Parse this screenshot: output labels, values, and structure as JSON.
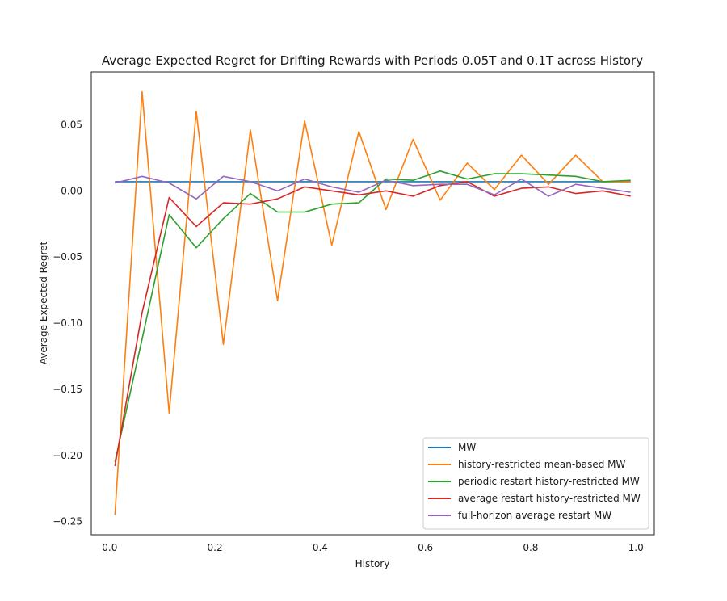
{
  "chart_data": {
    "type": "line",
    "title": "Average Expected Regret for Drifting Rewards with Periods 0.05T and 0.1T across History",
    "xlabel": "History",
    "ylabel": "Average Expected Regret",
    "xlim": [
      -0.035,
      1.035
    ],
    "ylim": [
      -0.26,
      0.09
    ],
    "xticks": [
      0.0,
      0.2,
      0.4,
      0.6,
      0.8,
      1.0
    ],
    "xtick_labels": [
      "0.0",
      "0.2",
      "0.4",
      "0.6",
      "0.8",
      "1.0"
    ],
    "yticks": [
      0.05,
      0.0,
      -0.05,
      -0.1,
      -0.15,
      -0.2,
      -0.25
    ],
    "ytick_labels": [
      "0.05",
      "0.00",
      "−0.05",
      "−0.10",
      "−0.15",
      "−0.20",
      "−0.25"
    ],
    "grid": false,
    "legend_position": "lower-right",
    "x": [
      0.01,
      0.0615,
      0.113,
      0.1645,
      0.216,
      0.2675,
      0.319,
      0.3705,
      0.422,
      0.4735,
      0.525,
      0.5765,
      0.628,
      0.6795,
      0.731,
      0.7825,
      0.834,
      0.8855,
      0.937,
      0.99
    ],
    "series": [
      {
        "name": "MW",
        "color": "#1f77b4",
        "values": [
          0.007,
          0.007,
          0.007,
          0.007,
          0.007,
          0.007,
          0.007,
          0.007,
          0.007,
          0.007,
          0.007,
          0.007,
          0.007,
          0.007,
          0.007,
          0.007,
          0.007,
          0.007,
          0.007,
          0.007
        ]
      },
      {
        "name": "history-restricted mean-based MW",
        "color": "#ff7f0e",
        "values": [
          -0.245,
          0.075,
          -0.168,
          0.06,
          -0.116,
          0.046,
          -0.083,
          0.053,
          -0.041,
          0.045,
          -0.014,
          0.039,
          -0.007,
          0.021,
          0.001,
          0.027,
          0.005,
          0.027,
          0.007,
          0.007
        ]
      },
      {
        "name": "periodic restart history-restricted MW",
        "color": "#2ca02c",
        "values": [
          -0.205,
          -0.112,
          -0.018,
          -0.043,
          -0.021,
          -0.002,
          -0.016,
          -0.016,
          -0.01,
          -0.009,
          0.009,
          0.008,
          0.015,
          0.009,
          0.013,
          0.013,
          0.012,
          0.011,
          0.007,
          0.008
        ]
      },
      {
        "name": "average restart history-restricted MW",
        "color": "#d62728",
        "values": [
          -0.208,
          -0.092,
          -0.005,
          -0.027,
          -0.009,
          -0.01,
          -0.006,
          0.003,
          0.0,
          -0.003,
          0.0,
          -0.004,
          0.004,
          0.007,
          -0.004,
          0.002,
          0.003,
          -0.002,
          0.0,
          -0.004
        ]
      },
      {
        "name": "full-horizon average restart MW",
        "color": "#9467bd",
        "values": [
          0.006,
          0.011,
          0.006,
          -0.006,
          0.011,
          0.007,
          0.0,
          0.009,
          0.003,
          -0.001,
          0.008,
          0.004,
          0.005,
          0.005,
          -0.003,
          0.009,
          -0.004,
          0.005,
          0.002,
          -0.001
        ]
      }
    ]
  }
}
